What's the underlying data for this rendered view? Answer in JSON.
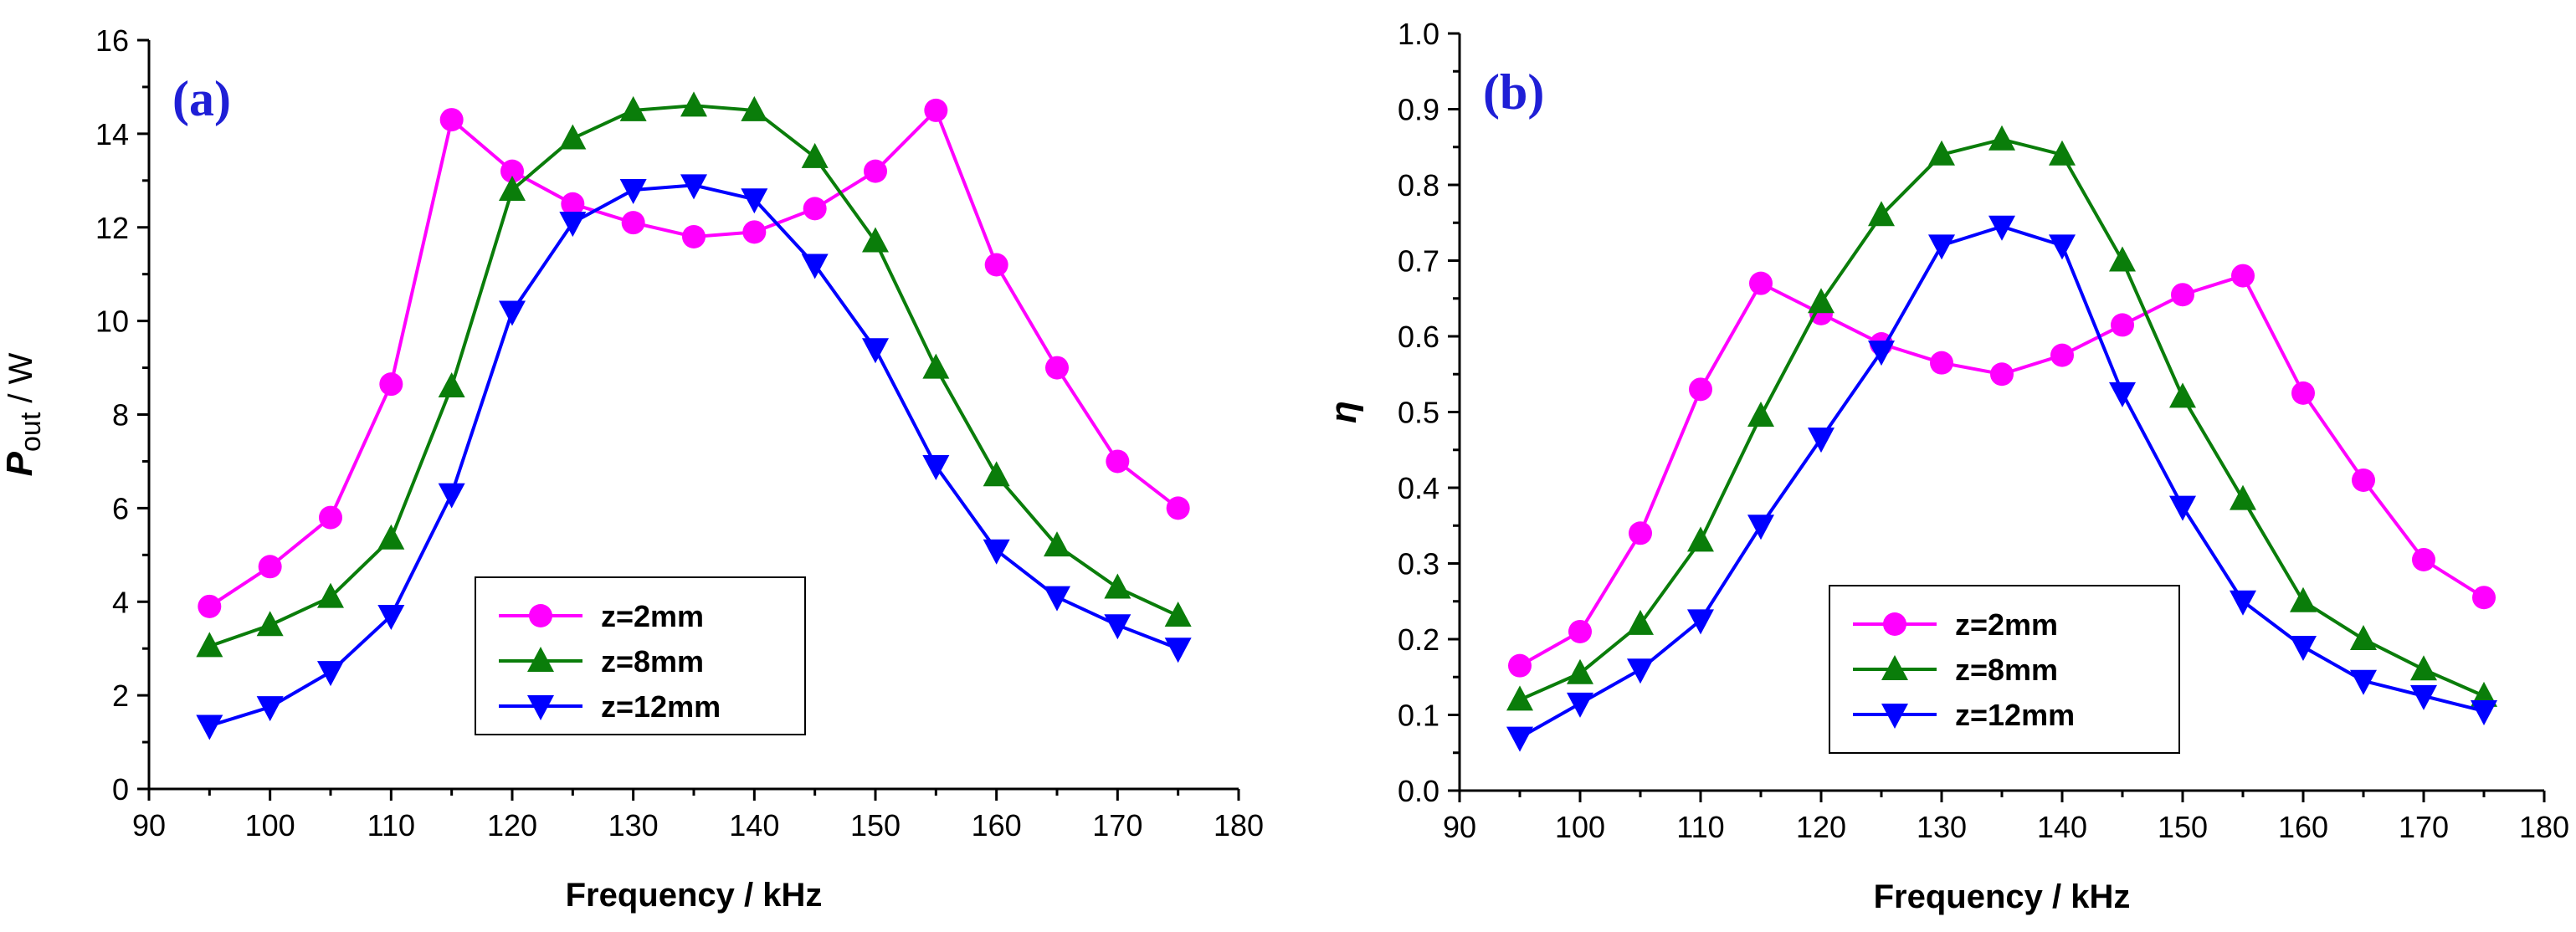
{
  "chart_data": [
    {
      "type": "line",
      "panel_label": "(a)",
      "title": "",
      "xlabel": "Frequency / kHz",
      "ylabel_main": "P",
      "ylabel_sub": "out",
      "ylabel_tail": " / W",
      "xlim": [
        90,
        180
      ],
      "ylim": [
        0,
        16
      ],
      "xticks": [
        90,
        100,
        110,
        120,
        130,
        140,
        150,
        160,
        170,
        180
      ],
      "yticks": [
        0,
        2,
        4,
        6,
        8,
        10,
        12,
        14,
        16
      ],
      "ytick_labels": [
        "0",
        "2",
        "4",
        "6",
        "8",
        "10",
        "12",
        "14",
        "16"
      ],
      "legend_position": "lower-center",
      "x": [
        95,
        100,
        105,
        110,
        115,
        120,
        125,
        130,
        135,
        140,
        145,
        150,
        155,
        160,
        165,
        170,
        175
      ],
      "series": [
        {
          "name": "z=2mm",
          "color": "#ff00ff",
          "marker": "circle",
          "values": [
            3.9,
            4.75,
            5.8,
            8.65,
            14.3,
            13.2,
            12.5,
            12.1,
            11.8,
            11.9,
            12.4,
            13.2,
            14.5,
            11.2,
            9.0,
            7.0,
            6.0
          ]
        },
        {
          "name": "z=8mm",
          "color": "#0a7d0a",
          "marker": "triangle-up",
          "values": [
            3.05,
            3.5,
            4.1,
            5.35,
            8.6,
            12.8,
            13.9,
            14.5,
            14.6,
            14.5,
            13.5,
            11.7,
            9.0,
            6.7,
            5.2,
            4.3,
            3.7
          ]
        },
        {
          "name": "z=12mm",
          "color": "#0000ff",
          "marker": "triangle-down",
          "values": [
            1.35,
            1.75,
            2.5,
            3.7,
            6.3,
            10.2,
            12.1,
            12.8,
            12.9,
            12.6,
            11.2,
            9.4,
            6.9,
            5.1,
            4.1,
            3.5,
            3.0
          ]
        }
      ]
    },
    {
      "type": "line",
      "panel_label": "(b)",
      "title": "",
      "xlabel": "Frequency / kHz",
      "ylabel_main": "η",
      "ylabel_sub": "",
      "ylabel_tail": "",
      "xlim": [
        90,
        180
      ],
      "ylim": [
        0,
        1
      ],
      "xticks": [
        90,
        100,
        110,
        120,
        130,
        140,
        150,
        160,
        170,
        180
      ],
      "yticks": [
        0,
        0.1,
        0.2,
        0.3,
        0.4,
        0.5,
        0.6,
        0.7,
        0.8,
        0.9,
        1.0
      ],
      "ytick_labels": [
        "0.0",
        "0.1",
        "0.2",
        "0.3",
        "0.4",
        "0.5",
        "0.6",
        "0.7",
        "0.8",
        "0.9",
        "1.0"
      ],
      "legend_position": "lower-center",
      "x": [
        95,
        100,
        105,
        110,
        115,
        120,
        125,
        130,
        135,
        140,
        145,
        150,
        155,
        160,
        165,
        170,
        175
      ],
      "series": [
        {
          "name": "z=2mm",
          "color": "#ff00ff",
          "marker": "circle",
          "values": [
            0.165,
            0.21,
            0.34,
            0.53,
            0.67,
            0.63,
            0.59,
            0.565,
            0.55,
            0.575,
            0.615,
            0.655,
            0.68,
            0.525,
            0.41,
            0.305,
            0.255
          ]
        },
        {
          "name": "z=8mm",
          "color": "#0a7d0a",
          "marker": "triangle-up",
          "values": [
            0.12,
            0.155,
            0.22,
            0.33,
            0.495,
            0.645,
            0.76,
            0.84,
            0.86,
            0.84,
            0.7,
            0.52,
            0.385,
            0.25,
            0.2,
            0.16,
            0.125
          ]
        },
        {
          "name": "z=12mm",
          "color": "#0000ff",
          "marker": "triangle-down",
          "values": [
            0.07,
            0.115,
            0.16,
            0.225,
            0.35,
            0.465,
            0.58,
            0.72,
            0.745,
            0.72,
            0.525,
            0.375,
            0.25,
            0.19,
            0.145,
            0.125,
            0.105
          ]
        }
      ]
    }
  ]
}
